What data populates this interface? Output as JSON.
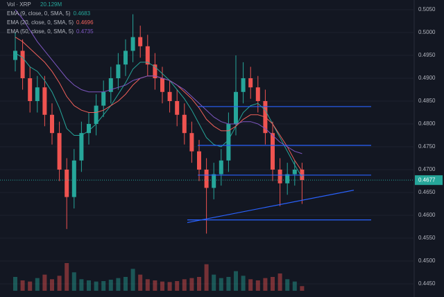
{
  "chart_data": {
    "type": "candlestick",
    "symbol": "XRP",
    "legend": {
      "vol_label": "Vol · XRP",
      "vol_value": "20.129M"
    },
    "series": [
      {
        "name": "EMA (9, close, 0, SMA, 5)",
        "color": "#26a69a",
        "values": [
          0.4955,
          0.4945,
          0.4925,
          0.4915,
          0.4895,
          0.487,
          0.4835,
          0.479,
          0.4775,
          0.4775,
          0.4785,
          0.48,
          0.482,
          0.484,
          0.4865,
          0.489,
          0.492,
          0.4935,
          0.4935,
          0.4925,
          0.491,
          0.4895,
          0.4875,
          0.4855,
          0.483,
          0.48,
          0.477,
          0.4755,
          0.475,
          0.4765,
          0.4795,
          0.4825,
          0.484,
          0.4845,
          0.483,
          0.48,
          0.477,
          0.474,
          0.471,
          0.4683
        ]
      },
      {
        "name": "EMA (20, close, 0, SMA, 5)",
        "color": "#f0605a",
        "values": [
          0.499,
          0.498,
          0.4965,
          0.495,
          0.4935,
          0.4915,
          0.489,
          0.486,
          0.484,
          0.483,
          0.4825,
          0.4825,
          0.483,
          0.484,
          0.485,
          0.4865,
          0.4885,
          0.49,
          0.4905,
          0.4905,
          0.49,
          0.4895,
          0.4885,
          0.487,
          0.4855,
          0.4835,
          0.481,
          0.4795,
          0.4785,
          0.4785,
          0.4795,
          0.481,
          0.482,
          0.482,
          0.4815,
          0.48,
          0.4775,
          0.475,
          0.472,
          0.4696
        ]
      },
      {
        "name": "EMA (50, close, 0, SMA, 5)",
        "color": "#7e57c2",
        "values": [
          0.505,
          0.503,
          0.5005,
          0.498,
          0.496,
          0.494,
          0.492,
          0.49,
          0.4885,
          0.4875,
          0.487,
          0.487,
          0.487,
          0.4875,
          0.488,
          0.4885,
          0.4895,
          0.49,
          0.4905,
          0.4905,
          0.49,
          0.4895,
          0.4885,
          0.4875,
          0.486,
          0.4845,
          0.483,
          0.4815,
          0.4805,
          0.48,
          0.48,
          0.4805,
          0.4805,
          0.48,
          0.479,
          0.4775,
          0.476,
          0.475,
          0.474,
          0.4735
        ]
      }
    ],
    "open": [
      0.494,
      0.496,
      0.49,
      0.485,
      0.488,
      0.482,
      0.478,
      0.47,
      0.464,
      0.472,
      0.478,
      0.48,
      0.484,
      0.487,
      0.49,
      0.493,
      0.496,
      0.499,
      0.497,
      0.493,
      0.49,
      0.487,
      0.485,
      0.482,
      0.478,
      0.474,
      0.47,
      0.466,
      0.469,
      0.472,
      0.48,
      0.487,
      0.49,
      0.488,
      0.485,
      0.478,
      0.47,
      0.467,
      0.469,
      0.47
    ],
    "high": [
      0.5,
      0.4985,
      0.4925,
      0.4905,
      0.4905,
      0.4845,
      0.4805,
      0.4725,
      0.4745,
      0.4805,
      0.4825,
      0.4865,
      0.4895,
      0.4925,
      0.4955,
      0.4985,
      0.504,
      0.5015,
      0.4995,
      0.4955,
      0.4925,
      0.4895,
      0.4875,
      0.4845,
      0.4805,
      0.4765,
      0.4725,
      0.4715,
      0.4745,
      0.4825,
      0.495,
      0.4935,
      0.4925,
      0.4905,
      0.4875,
      0.4805,
      0.4725,
      0.4715,
      0.472,
      0.4715
    ],
    "low": [
      0.4915,
      0.4875,
      0.4825,
      0.4825,
      0.4795,
      0.4755,
      0.4675,
      0.457,
      0.4615,
      0.4695,
      0.4755,
      0.4775,
      0.4815,
      0.4845,
      0.4875,
      0.4905,
      0.4935,
      0.4945,
      0.4905,
      0.4875,
      0.4845,
      0.4825,
      0.4795,
      0.4755,
      0.4715,
      0.4675,
      0.456,
      0.4635,
      0.4665,
      0.4695,
      0.4775,
      0.4845,
      0.4855,
      0.4825,
      0.4755,
      0.4675,
      0.462,
      0.4645,
      0.4665,
      0.4625
    ],
    "close": [
      0.496,
      0.49,
      0.485,
      0.488,
      0.482,
      0.478,
      0.47,
      0.464,
      0.472,
      0.478,
      0.48,
      0.484,
      0.487,
      0.49,
      0.493,
      0.496,
      0.499,
      0.497,
      0.493,
      0.49,
      0.487,
      0.485,
      0.482,
      0.478,
      0.474,
      0.47,
      0.466,
      0.469,
      0.472,
      0.48,
      0.487,
      0.49,
      0.488,
      0.485,
      0.478,
      0.47,
      0.467,
      0.469,
      0.47,
      0.4677
    ],
    "volume": [
      60,
      45,
      40,
      55,
      70,
      50,
      65,
      120,
      80,
      50,
      45,
      40,
      42,
      48,
      55,
      60,
      95,
      70,
      50,
      45,
      40,
      38,
      42,
      50,
      55,
      60,
      115,
      70,
      55,
      60,
      85,
      65,
      50,
      45,
      55,
      60,
      75,
      50,
      40,
      20.129
    ],
    "up_color": "#26a69a",
    "down_color": "#ef5350",
    "levels": [
      0.4838,
      0.4753,
      0.4688,
      0.459
    ],
    "level_color": "#2962ff",
    "trendline": [
      0.4584,
      0.4655
    ],
    "ylim": [
      0.445,
      0.505
    ],
    "yticks": [
      {
        "value": 0.445,
        "label": "0.4450"
      },
      {
        "value": 0.45,
        "label": "0.4500"
      },
      {
        "value": 0.455,
        "label": "0.4550"
      },
      {
        "value": 0.46,
        "label": "0.4600"
      },
      {
        "value": 0.465,
        "label": "0.4650"
      },
      {
        "value": 0.47,
        "label": "0.4700"
      },
      {
        "value": 0.475,
        "label": "0.4750"
      },
      {
        "value": 0.48,
        "label": "0.4800"
      },
      {
        "value": 0.485,
        "label": "0.4850"
      },
      {
        "value": 0.49,
        "label": "0.4900"
      },
      {
        "value": 0.495,
        "label": "0.4950"
      },
      {
        "value": 0.5,
        "label": "0.5000"
      },
      {
        "value": 0.505,
        "label": "0.5050"
      }
    ],
    "grid": true
  }
}
